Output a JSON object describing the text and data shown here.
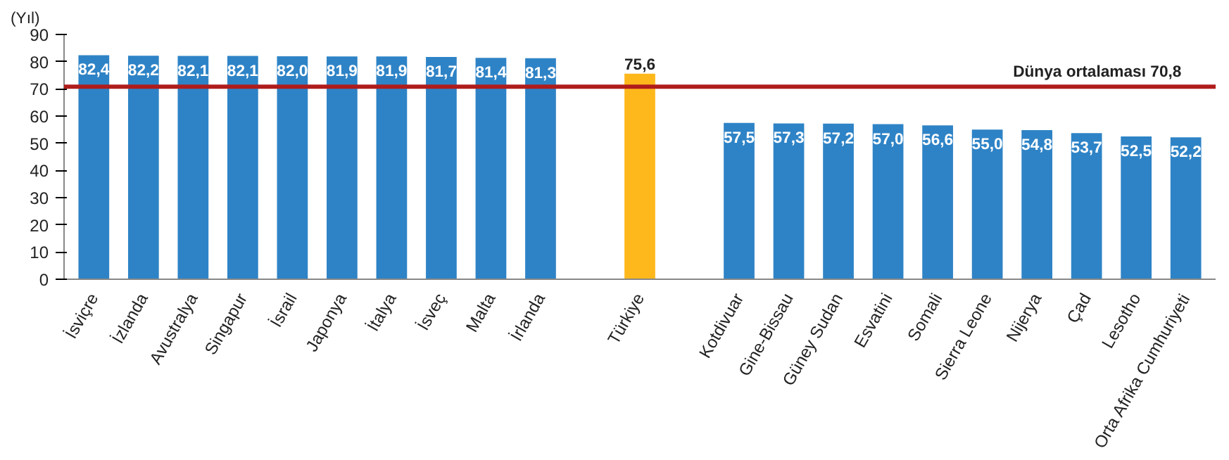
{
  "chart_data": {
    "type": "bar",
    "ylabel": "(Yıl)",
    "categories": [
      "İsviçre",
      "İzlanda",
      "Avustralya",
      "Singapur",
      "İsrail",
      "Japonya",
      "İtalya",
      "İsveç",
      "Malta",
      "İrlanda",
      null,
      "Türkiye",
      null,
      "Kotdivuar",
      "Gine-Bissau",
      "Güney Sudan",
      "Esvatini",
      "Somali",
      "Sierra Leone",
      "Nijerya",
      "Çad",
      "Lesotho",
      "Orta Afrika Cumhuriyeti"
    ],
    "values": [
      82.4,
      82.2,
      82.1,
      82.1,
      82.0,
      81.9,
      81.9,
      81.7,
      81.4,
      81.3,
      null,
      75.6,
      null,
      57.5,
      57.3,
      57.2,
      57.0,
      56.6,
      55.0,
      54.8,
      53.7,
      52.5,
      52.2
    ],
    "value_labels": [
      "82,4",
      "82,2",
      "82,1",
      "82,1",
      "82,0",
      "81,9",
      "81,9",
      "81,7",
      "81,4",
      "81,3",
      null,
      "75,6",
      null,
      "57,5",
      "57,3",
      "57,2",
      "57,0",
      "56,6",
      "55,0",
      "54,8",
      "53,7",
      "52,5",
      "52,2"
    ],
    "colors": [
      "#2e83c6",
      "#2e83c6",
      "#2e83c6",
      "#2e83c6",
      "#2e83c6",
      "#2e83c6",
      "#2e83c6",
      "#2e83c6",
      "#2e83c6",
      "#2e83c6",
      "#2e83c6",
      "#ffb81c",
      "#2e83c6",
      "#2e83c6",
      "#2e83c6",
      "#2e83c6",
      "#2e83c6",
      "#2e83c6",
      "#2e83c6",
      "#2e83c6",
      "#2e83c6",
      "#2e83c6",
      "#2e83c6"
    ],
    "ylim": [
      0,
      90
    ],
    "yticks": [
      0,
      10,
      20,
      30,
      40,
      50,
      60,
      70,
      80,
      90
    ],
    "ref_lines": [
      {
        "axis": "y",
        "value": 70.8,
        "label": "Dünya ortalaması  70,8",
        "color": "#b01c1c"
      }
    ],
    "grid": false
  }
}
